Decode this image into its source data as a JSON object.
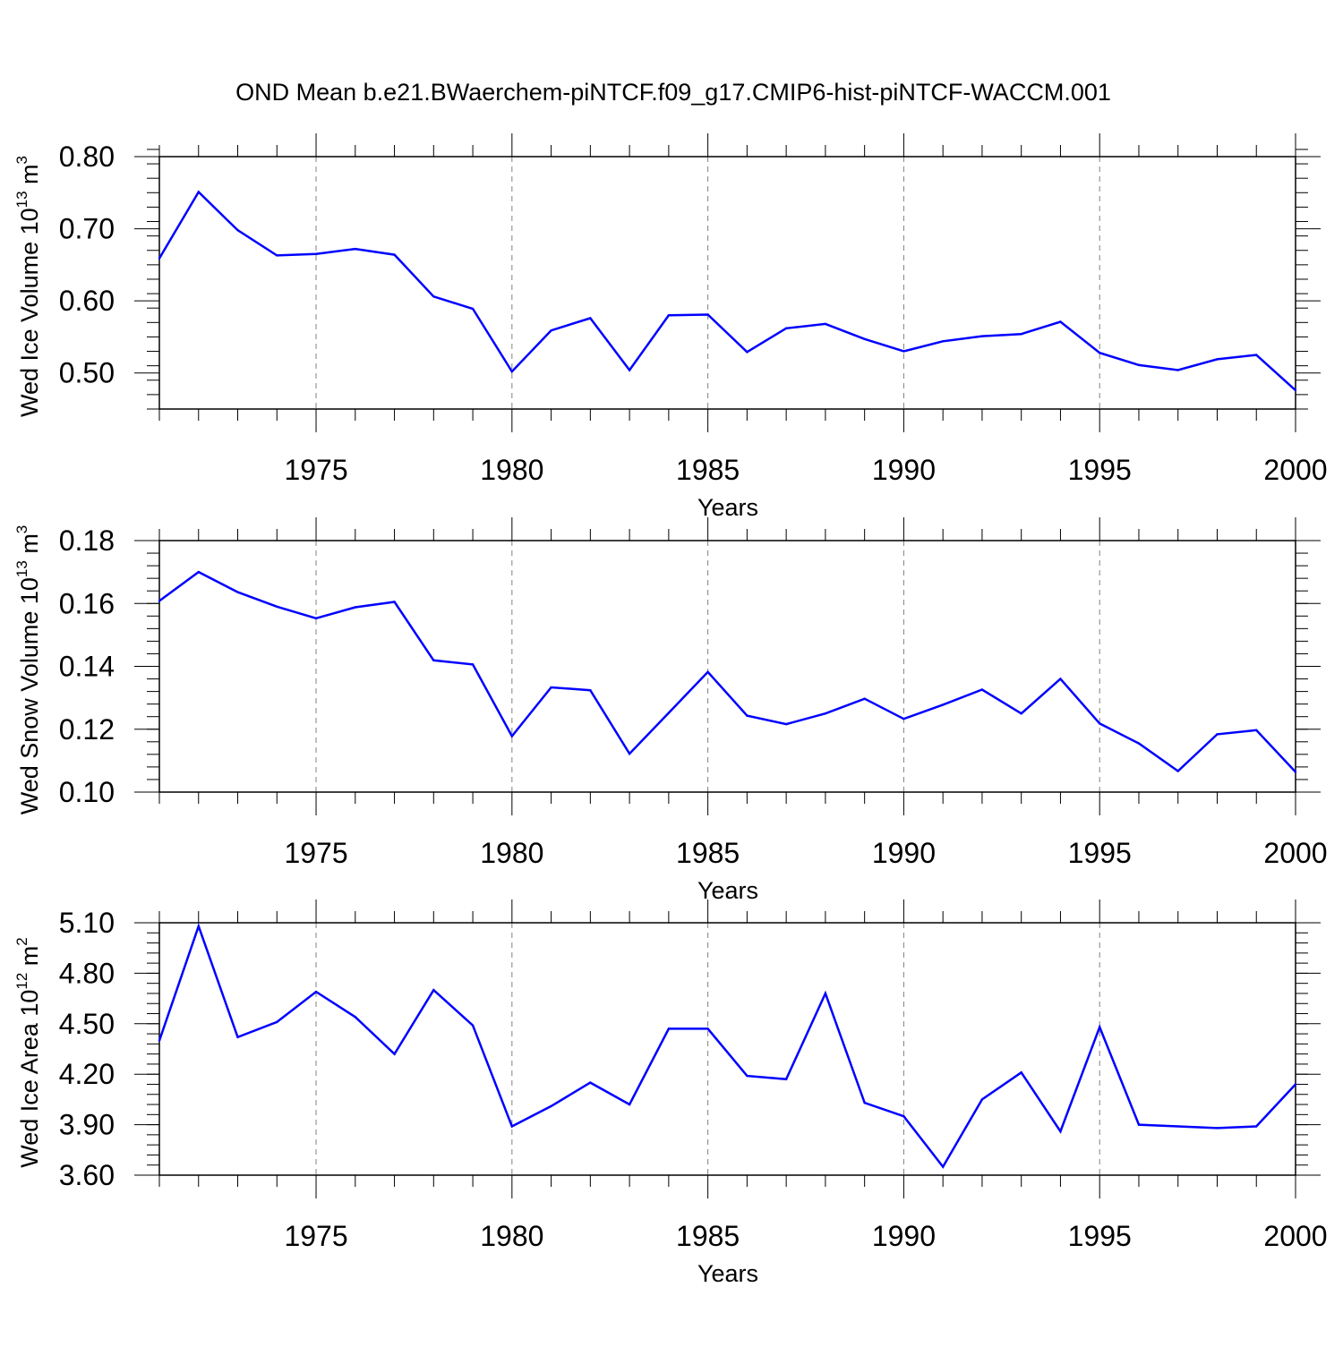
{
  "title": "OND Mean b.e21.BWaerchem-piNTCF.f09_g17.CMIP6-hist-piNTCF-WACCM.001",
  "colors": {
    "line": "#0000ff",
    "axis": "#000000",
    "grid": "#808080"
  },
  "chart_data": [
    {
      "type": "line",
      "ylabel_main": "Wed Ice Volume 10",
      "ylabel_exp": "13",
      "ylabel_unit": " m",
      "ylabel_unit_exp": "3",
      "xlabel": "Years",
      "xlim": [
        1971,
        2000
      ],
      "ylim": [
        0.45,
        0.8
      ],
      "yticks": [
        0.5,
        0.6,
        0.7,
        0.8
      ],
      "ytick_labels": [
        "0.50",
        "0.60",
        "0.70",
        "0.80"
      ],
      "yminor_step": 0.02,
      "xticks": [
        1975,
        1980,
        1985,
        1990,
        1995,
        2000
      ],
      "xtick_labels": [
        "1975",
        "1980",
        "1985",
        "1990",
        "1995",
        "2000"
      ],
      "x": [
        1971,
        1972,
        1973,
        1974,
        1975,
        1976,
        1977,
        1978,
        1979,
        1980,
        1981,
        1982,
        1983,
        1984,
        1985,
        1986,
        1987,
        1988,
        1989,
        1990,
        1991,
        1992,
        1993,
        1994,
        1995,
        1996,
        1997,
        1998,
        1999,
        2000
      ],
      "series": [
        {
          "name": "Wed Ice Volume",
          "values": [
            0.659,
            0.751,
            0.698,
            0.663,
            0.665,
            0.672,
            0.664,
            0.606,
            0.589,
            0.502,
            0.559,
            0.576,
            0.504,
            0.58,
            0.581,
            0.529,
            0.562,
            0.568,
            0.547,
            0.53,
            0.544,
            0.551,
            0.554,
            0.571,
            0.528,
            0.511,
            0.504,
            0.519,
            0.525,
            0.476
          ]
        }
      ]
    },
    {
      "type": "line",
      "ylabel_main": "Wed Snow Volume 10",
      "ylabel_exp": "13",
      "ylabel_unit": " m",
      "ylabel_unit_exp": "3",
      "xlabel": "Years",
      "xlim": [
        1971,
        2000
      ],
      "ylim": [
        0.1,
        0.18
      ],
      "yticks": [
        0.1,
        0.12,
        0.14,
        0.16,
        0.18
      ],
      "ytick_labels": [
        "0.10",
        "0.12",
        "0.14",
        "0.16",
        "0.18"
      ],
      "yminor_step": 0.004,
      "xticks": [
        1975,
        1980,
        1985,
        1990,
        1995,
        2000
      ],
      "xtick_labels": [
        "1975",
        "1980",
        "1985",
        "1990",
        "1995",
        "2000"
      ],
      "x": [
        1971,
        1972,
        1973,
        1974,
        1975,
        1976,
        1977,
        1978,
        1979,
        1980,
        1981,
        1982,
        1983,
        1984,
        1985,
        1986,
        1987,
        1988,
        1989,
        1990,
        1991,
        1992,
        1993,
        1994,
        1995,
        1996,
        1997,
        1998,
        1999,
        2000
      ],
      "series": [
        {
          "name": "Wed Snow Volume",
          "values": [
            0.1608,
            0.17,
            0.1636,
            0.159,
            0.1553,
            0.1588,
            0.1605,
            0.1419,
            0.1406,
            0.1178,
            0.1333,
            0.1324,
            0.1122,
            0.1252,
            0.1382,
            0.1243,
            0.1216,
            0.125,
            0.1297,
            0.1233,
            0.1278,
            0.1326,
            0.125,
            0.136,
            0.1218,
            0.1155,
            0.1067,
            0.1184,
            0.1197,
            0.1064
          ]
        }
      ]
    },
    {
      "type": "line",
      "ylabel_main": "Wed Ice Area 10",
      "ylabel_exp": "12",
      "ylabel_unit": " m",
      "ylabel_unit_exp": "2",
      "xlabel": "Years",
      "xlim": [
        1971,
        2000
      ],
      "ylim": [
        3.6,
        5.1
      ],
      "yticks": [
        3.6,
        3.9,
        4.2,
        4.5,
        4.8,
        5.1
      ],
      "ytick_labels": [
        "3.60",
        "3.90",
        "4.20",
        "4.50",
        "4.80",
        "5.10"
      ],
      "yminor_step": 0.06,
      "xticks": [
        1975,
        1980,
        1985,
        1990,
        1995,
        2000
      ],
      "xtick_labels": [
        "1975",
        "1980",
        "1985",
        "1990",
        "1995",
        "2000"
      ],
      "x": [
        1971,
        1972,
        1973,
        1974,
        1975,
        1976,
        1977,
        1978,
        1979,
        1980,
        1981,
        1982,
        1983,
        1984,
        1985,
        1986,
        1987,
        1988,
        1989,
        1990,
        1991,
        1992,
        1993,
        1994,
        1995,
        1996,
        1997,
        1998,
        1999,
        2000
      ],
      "series": [
        {
          "name": "Wed Ice Area",
          "values": [
            4.4,
            5.08,
            4.42,
            4.51,
            4.69,
            4.54,
            4.32,
            4.7,
            4.49,
            3.89,
            4.01,
            4.15,
            4.02,
            4.47,
            4.47,
            4.19,
            4.17,
            4.68,
            4.03,
            3.95,
            3.65,
            4.05,
            4.21,
            3.86,
            4.48,
            3.9,
            3.89,
            3.88,
            3.89,
            4.14
          ]
        }
      ]
    }
  ]
}
